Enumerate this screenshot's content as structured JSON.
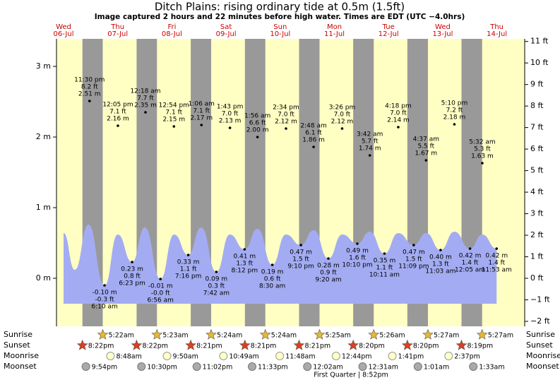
{
  "chart_data": {
    "type": "tide",
    "title": "Ditch Plains: rising  ordinary tide at 0.5m (1.5ft)",
    "subtitle": "Image captured 2 hours and 22 minutes before high water. Times are EDT (UTC −4.0hrs)",
    "days": [
      {
        "weekday": "Wed",
        "date": "06-Jul"
      },
      {
        "weekday": "Thu",
        "date": "07-Jul"
      },
      {
        "weekday": "Fri",
        "date": "08-Jul"
      },
      {
        "weekday": "Sat",
        "date": "09-Jul"
      },
      {
        "weekday": "Sun",
        "date": "10-Jul"
      },
      {
        "weekday": "Mon",
        "date": "11-Jul"
      },
      {
        "weekday": "Tue",
        "date": "12-Jul"
      },
      {
        "weekday": "Wed",
        "date": "13-Jul"
      },
      {
        "weekday": "Thu",
        "date": "14-Jul"
      }
    ],
    "ylim": [
      -0.68,
      3.39
    ],
    "yticks": [
      {
        "value": 0,
        "label": "0 m"
      },
      {
        "value": 1,
        "label": "1 m"
      },
      {
        "value": 2,
        "label": "2 m"
      },
      {
        "value": 3,
        "label": "3 m"
      }
    ],
    "y2lim": [
      -2.23,
      11.12
    ],
    "y2ticks": [
      {
        "value": -2,
        "label": "−2 ft"
      },
      {
        "value": -1,
        "label": "−1 ft"
      },
      {
        "value": 0,
        "label": "0 ft"
      },
      {
        "value": 1,
        "label": "1 ft"
      },
      {
        "value": 2,
        "label": "2 ft"
      },
      {
        "value": 3,
        "label": "3 ft"
      },
      {
        "value": 4,
        "label": "4 ft"
      },
      {
        "value": 5,
        "label": "5 ft"
      },
      {
        "value": 6,
        "label": "6 ft"
      },
      {
        "value": 7,
        "label": "7 ft"
      },
      {
        "value": 8,
        "label": "8 ft"
      },
      {
        "value": 9,
        "label": "9 ft"
      },
      {
        "value": 10,
        "label": "10 ft"
      },
      {
        "value": 11,
        "label": "11 ft"
      }
    ],
    "colors": {
      "day": "#ffffc4",
      "night": "#999999",
      "water": "#a3acf2"
    },
    "curve": {
      "x": [
        "06-Jul 12:00",
        "06-Jul 17:00",
        "06-Jul 23:00",
        "07-Jul 06:10",
        "07-Jul 12:00",
        "07-Jul 18:23",
        "08-Jul 00:00",
        "08-Jul 06:56",
        "08-Jul 13:00",
        "08-Jul 19:16",
        "09-Jul 01:00",
        "09-Jul 07:42",
        "09-Jul 13:40",
        "09-Jul 20:12",
        "10-Jul 02:00",
        "10-Jul 08:30",
        "10-Jul 14:30",
        "10-Jul 21:10",
        "11-Jul 02:50",
        "11-Jul 09:20",
        "11-Jul 15:30",
        "11-Jul 22:10",
        "12-Jul 03:40",
        "12-Jul 10:11",
        "12-Jul 16:20",
        "12-Jul 23:09",
        "13-Jul 04:40",
        "13-Jul 11:03",
        "13-Jul 17:10",
        "14-Jul 00:05",
        "14-Jul 05:30",
        "14-Jul 11:53"
      ],
      "values": [
        0.64,
        0.12,
        0.76,
        -0.1,
        0.62,
        0.23,
        0.72,
        -0.01,
        0.62,
        0.33,
        0.72,
        0.09,
        0.62,
        0.41,
        0.7,
        0.19,
        0.62,
        0.47,
        0.68,
        0.28,
        0.62,
        0.49,
        0.66,
        0.35,
        0.64,
        0.47,
        0.64,
        0.4,
        0.66,
        0.42,
        0.62,
        0.42
      ]
    },
    "tides": {
      "dates": [
        "06-Jul",
        "07-Jul",
        "07-Jul",
        "07-Jul",
        "08-Jul",
        "08-Jul",
        "08-Jul",
        "08-Jul",
        "09-Jul",
        "09-Jul",
        "09-Jul",
        "09-Jul",
        "10-Jul",
        "10-Jul",
        "10-Jul",
        "10-Jul",
        "11-Jul",
        "11-Jul",
        "11-Jul",
        "11-Jul",
        "12-Jul",
        "12-Jul",
        "12-Jul",
        "12-Jul",
        "13-Jul",
        "13-Jul",
        "13-Jul",
        "14-Jul",
        "14-Jul",
        "14-Jul"
      ],
      "times": [
        "11:30 pm",
        "6:10 am",
        "12:05 pm",
        "6:23 pm",
        "12:18 am",
        "6:56 am",
        "12:54 pm",
        "7:16 pm",
        "1:06 am",
        "7:42 am",
        "1:43 pm",
        "8:12 pm",
        "1:56 am",
        "8:30 am",
        "2:34 pm",
        "9:10 pm",
        "2:48 am",
        "9:20 am",
        "3:26 pm",
        "10:10 pm",
        "3:42 am",
        "10:11 am",
        "4:18 pm",
        "11:09 pm",
        "4:37 am",
        "11:03 am",
        "5:10 pm",
        "12:05 am",
        "5:32 am",
        "11:53 am"
      ],
      "values": [
        2.51,
        -0.1,
        2.16,
        0.23,
        2.35,
        -0.01,
        2.15,
        0.33,
        2.17,
        0.09,
        2.13,
        0.41,
        2.0,
        0.19,
        2.12,
        0.47,
        1.86,
        0.28,
        2.12,
        0.49,
        1.74,
        0.35,
        2.14,
        0.47,
        1.67,
        0.4,
        2.18,
        0.42,
        1.63,
        0.42
      ],
      "value_labels": [
        "2.51 m",
        "-0.10 m",
        "2.16 m",
        "0.23 m",
        "2.35 m",
        "-0.01 m",
        "2.15 m",
        "0.33 m",
        "2.17 m",
        "0.09 m",
        "2.13 m",
        "0.41 m",
        "2.00 m",
        "0.19 m",
        "2.12 m",
        "0.47 m",
        "1.86 m",
        "0.28 m",
        "2.12 m",
        "0.49 m",
        "1.74 m",
        "0.35 m",
        "2.14 m",
        "0.47 m",
        "1.67 m",
        "0.40 m",
        "2.18 m",
        "0.42 m",
        "1.63 m",
        "0.42 m"
      ],
      "feet_labels": [
        "8.2 ft",
        "-0.3 ft",
        "7.1 ft",
        "0.8 ft",
        "7.7 ft",
        "-0.0 ft",
        "7.1 ft",
        "1.1 ft",
        "7.1 ft",
        "0.3 ft",
        "7.0 ft",
        "1.3 ft",
        "6.6 ft",
        "0.6 ft",
        "7.0 ft",
        "1.5 ft",
        "6.1 ft",
        "0.9 ft",
        "7.0 ft",
        "1.6 ft",
        "5.7 ft",
        "1.1 ft",
        "7.0 ft",
        "1.5 ft",
        "5.5 ft",
        "1.3 ft",
        "7.2 ft",
        "1.4 ft",
        "5.3 ft",
        "1.4 ft"
      ]
    },
    "rows": [
      {
        "name": "Sunrise",
        "icon": "sunrise",
        "dates": [
          "07-Jul",
          "08-Jul",
          "09-Jul",
          "10-Jul",
          "11-Jul",
          "12-Jul",
          "13-Jul",
          "14-Jul"
        ],
        "times": [
          "5:22am",
          "5:23am",
          "5:24am",
          "5:24am",
          "5:25am",
          "5:26am",
          "5:27am",
          "5:27am"
        ]
      },
      {
        "name": "Sunset",
        "icon": "sunset",
        "dates": [
          "06-Jul",
          "07-Jul",
          "08-Jul",
          "09-Jul",
          "10-Jul",
          "11-Jul",
          "12-Jul",
          "13-Jul"
        ],
        "times": [
          "8:22pm",
          "8:22pm",
          "8:21pm",
          "8:21pm",
          "8:21pm",
          "8:20pm",
          "8:20pm",
          "8:19pm"
        ]
      },
      {
        "name": "Moonrise",
        "icon": "moonrise",
        "dates": [
          "07-Jul",
          "08-Jul",
          "09-Jul",
          "10-Jul",
          "11-Jul",
          "12-Jul",
          "13-Jul"
        ],
        "times": [
          "8:48am",
          "9:50am",
          "10:49am",
          "11:48am",
          "12:44pm",
          "1:41pm",
          "2:37pm"
        ]
      },
      {
        "name": "Moonset",
        "icon": "moonset",
        "dates": [
          "06-Jul",
          "07-Jul",
          "08-Jul",
          "09-Jul",
          "11-Jul",
          "12-Jul",
          "13-Jul",
          "14-Jul"
        ],
        "times": [
          "9:54pm",
          "10:30pm",
          "11:02pm",
          "11:33pm",
          "12:02am",
          "12:31am",
          "1:01am",
          "1:33am"
        ]
      }
    ],
    "moon_phase": "First Quarter | 8:52pm"
  }
}
